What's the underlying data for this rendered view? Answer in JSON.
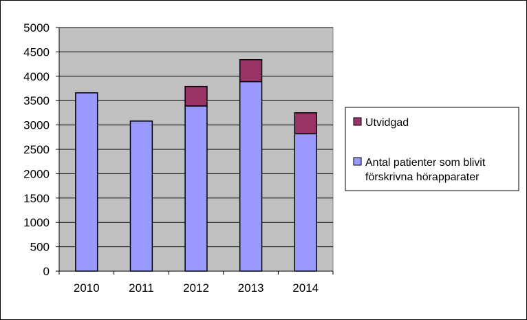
{
  "chart_data": {
    "type": "bar",
    "stacked": true,
    "categories": [
      "2010",
      "2011",
      "2012",
      "2013",
      "2014"
    ],
    "series": [
      {
        "name": "Antal patienter som blivit förskrivna hörapparater",
        "name_lines": [
          "Antal patienter som blivit",
          "förskrivna hörapparater"
        ],
        "color": "#9999FF",
        "values": [
          3660,
          3080,
          3390,
          3890,
          2820
        ]
      },
      {
        "name": "Utvidgad",
        "name_lines": [
          "Utvidgad"
        ],
        "color": "#993366",
        "values": [
          0,
          0,
          400,
          450,
          430
        ]
      }
    ],
    "ylim": [
      0,
      5000
    ],
    "yticks": [
      0,
      500,
      1000,
      1500,
      2000,
      2500,
      3000,
      3500,
      4000,
      4500,
      5000
    ],
    "grid": true,
    "plot_background": "#C0C0C0",
    "legend_position": "right",
    "legend_order": [
      1,
      0
    ],
    "title": "",
    "xlabel": "",
    "ylabel": ""
  }
}
